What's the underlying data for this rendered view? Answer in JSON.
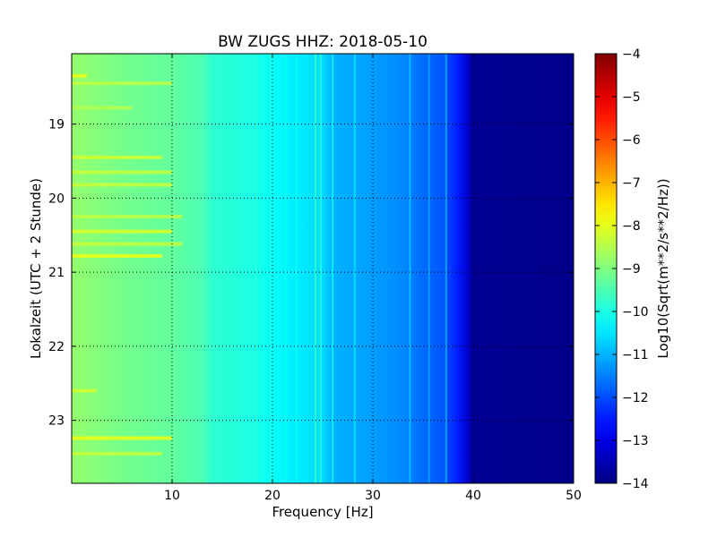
{
  "chart_data": {
    "type": "heatmap",
    "title": "BW ZUGS HHZ: 2018-05-10",
    "xlabel": "Frequency [Hz]",
    "ylabel": "Lokalzeit (UTC + 2 Stunde)",
    "xlim": [
      0,
      50
    ],
    "ylim": [
      23.85,
      18.05
    ],
    "x_ticks": [
      10,
      20,
      30,
      40,
      50
    ],
    "x_tick_labels": [
      "10",
      "20",
      "30",
      "40",
      "50"
    ],
    "y_ticks": [
      19,
      20,
      21,
      22,
      23
    ],
    "y_tick_labels": [
      "19",
      "20",
      "21",
      "22",
      "23"
    ],
    "grid": true,
    "colormap": "jet",
    "colorbar": {
      "label": "Log10(Sqrt(m**2/s**2/Hz))",
      "range": [
        -14,
        -4
      ],
      "ticks": [
        -4,
        -5,
        -6,
        -7,
        -8,
        -9,
        -10,
        -11,
        -12,
        -13,
        -14
      ],
      "tick_labels": [
        "−4",
        "−5",
        "−6",
        "−7",
        "−8",
        "−9",
        "−10",
        "−11",
        "−12",
        "−13",
        "−14"
      ]
    },
    "frequency_profile": {
      "frequency_hz": [
        0,
        5,
        10,
        13,
        14,
        18,
        20,
        22,
        25,
        26,
        28,
        30,
        33,
        35,
        37,
        38.5,
        39.5,
        40,
        50
      ],
      "log10_amplitude": [
        -8.8,
        -9.1,
        -9.3,
        -9.5,
        -9.8,
        -10.0,
        -10.2,
        -10.4,
        -10.6,
        -11.0,
        -11.1,
        -11.2,
        -11.4,
        -11.7,
        -11.9,
        -12.5,
        -13.3,
        -13.8,
        -13.9
      ]
    },
    "spectral_lines_hz": [
      {
        "frequency_hz": 18.3,
        "log10_amplitude": -9.8
      },
      {
        "frequency_hz": 19.8,
        "log10_amplitude": -10.0
      },
      {
        "frequency_hz": 21.3,
        "log10_amplitude": -10.1
      },
      {
        "frequency_hz": 22.4,
        "log10_amplitude": -10.2
      },
      {
        "frequency_hz": 24.3,
        "log10_amplitude": -9.6
      },
      {
        "frequency_hz": 24.8,
        "log10_amplitude": -9.8
      },
      {
        "frequency_hz": 26.0,
        "log10_amplitude": -10.1
      },
      {
        "frequency_hz": 28.2,
        "log10_amplitude": -10.4
      },
      {
        "frequency_hz": 33.7,
        "log10_amplitude": -10.7
      },
      {
        "frequency_hz": 35.6,
        "log10_amplitude": -11.0
      },
      {
        "frequency_hz": 37.3,
        "log10_amplitude": -10.9
      }
    ],
    "high_amplitude_intervals": [
      {
        "time_hours": 18.35,
        "f_max_hz": 1.5,
        "log10_amplitude": -7.9
      },
      {
        "time_hours": 18.45,
        "f_max_hz": 10,
        "log10_amplitude": -8.4
      },
      {
        "time_hours": 18.78,
        "f_max_hz": 6,
        "log10_amplitude": -8.5
      },
      {
        "time_hours": 19.45,
        "f_max_hz": 9,
        "log10_amplitude": -8.2
      },
      {
        "time_hours": 19.65,
        "f_max_hz": 10,
        "log10_amplitude": -8.3
      },
      {
        "time_hours": 19.82,
        "f_max_hz": 10,
        "log10_amplitude": -8.3
      },
      {
        "time_hours": 20.25,
        "f_max_hz": 11,
        "log10_amplitude": -8.4
      },
      {
        "time_hours": 20.45,
        "f_max_hz": 10,
        "log10_amplitude": -8.1
      },
      {
        "time_hours": 20.62,
        "f_max_hz": 11,
        "log10_amplitude": -8.3
      },
      {
        "time_hours": 20.78,
        "f_max_hz": 9,
        "log10_amplitude": -7.9
      },
      {
        "time_hours": 22.6,
        "f_max_hz": 2.5,
        "log10_amplitude": -8.2
      },
      {
        "time_hours": 23.24,
        "f_max_hz": 10,
        "log10_amplitude": -7.9
      },
      {
        "time_hours": 23.45,
        "f_max_hz": 9,
        "log10_amplitude": -8.3
      }
    ]
  }
}
